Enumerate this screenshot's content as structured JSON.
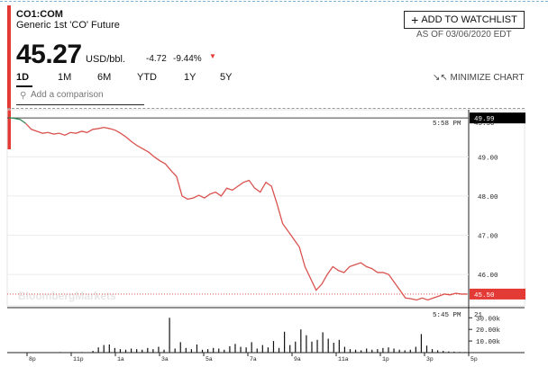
{
  "header": {
    "ticker": "CO1:COM",
    "name": "Generic 1st 'CO' Future",
    "price": "45.27",
    "unit": "USD/bbl.",
    "change": "-4.72",
    "change_pct": "-9.44%",
    "watchlist_label": "ADD TO WATCHLIST",
    "as_of": "AS OF 03/06/2020 EDT"
  },
  "ranges": [
    "1D",
    "1M",
    "6M",
    "YTD",
    "1Y",
    "5Y"
  ],
  "active_range": "1D",
  "minimize_label": "MINIMIZE CHART",
  "comparison": {
    "placeholder": "Add a comparison"
  },
  "watermark": "BloombergMarkets",
  "colors": {
    "accent": "#e43a35",
    "line": "#d9534f",
    "start_marker": "#2e8b57"
  },
  "chart_data": [
    {
      "type": "line",
      "title": "",
      "y_ticks": [
        49.0,
        48.0,
        47.0,
        46.0
      ],
      "ylim": [
        45.2,
        50.2
      ],
      "previous_close": 49.99,
      "last_price": 45.5,
      "last_time": "5:58 PM",
      "last_time_value": "45.50",
      "x_ticks": [
        "8p",
        "11p",
        "1a",
        "3a",
        "5a",
        "7a",
        "9a",
        "11a",
        "1p",
        "3p",
        "5p"
      ],
      "series": [
        {
          "values": [
            50.0,
            49.98,
            49.95,
            49.85,
            49.7,
            49.65,
            49.6,
            49.62,
            49.58,
            49.6,
            49.55,
            49.62,
            49.6,
            49.65,
            49.62,
            49.7,
            49.72,
            49.75,
            49.72,
            49.68,
            49.6,
            49.5,
            49.38,
            49.28,
            49.2,
            49.12,
            49.0,
            48.9,
            48.82,
            48.65,
            48.5,
            48.0,
            47.92,
            47.95,
            48.02,
            47.95,
            48.05,
            48.1,
            48.0,
            48.2,
            48.15,
            48.25,
            48.35,
            48.4,
            48.2,
            48.1,
            48.35,
            48.25,
            47.8,
            47.3,
            47.1,
            46.9,
            46.7,
            46.2,
            45.9,
            45.6,
            45.75,
            46.0,
            46.2,
            46.1,
            46.05,
            46.2,
            46.25,
            46.3,
            46.2,
            46.15,
            46.05,
            46.05,
            46.0,
            45.8,
            45.6,
            45.4,
            45.38,
            45.35,
            45.4,
            45.35,
            45.4,
            45.45,
            45.5,
            45.48,
            45.52,
            45.5,
            45.5
          ]
        }
      ]
    },
    {
      "type": "bar",
      "title": "",
      "last_time": "5:45 PM",
      "last_value": "21",
      "y_ticks": [
        "30.00k",
        "20.00k",
        "10.00k"
      ],
      "ylim": [
        0,
        31000
      ],
      "values": [
        300,
        400,
        250,
        350,
        300,
        250,
        400,
        300,
        350,
        500,
        400,
        450,
        350,
        500,
        300,
        1500,
        4500,
        6500,
        7000,
        4000,
        3000,
        2500,
        3500,
        3000,
        2500,
        4000,
        3000,
        5000,
        2500,
        30000,
        3500,
        9000,
        4000,
        3000,
        7000,
        2500,
        3000,
        4000,
        3500,
        2500,
        5500,
        7500,
        5000,
        4500,
        9000,
        3500,
        6500,
        4500,
        10000,
        4000,
        18000,
        6500,
        9500,
        20000,
        15000,
        9500,
        11000,
        17500,
        12000,
        8500,
        11000,
        5000,
        3000,
        2500,
        2000,
        3500,
        2500,
        3000,
        4000,
        4500,
        3500,
        2500,
        2000,
        2500,
        5000,
        16000,
        6000,
        3000,
        2000,
        1500,
        1000,
        800,
        600,
        500
      ]
    }
  ]
}
